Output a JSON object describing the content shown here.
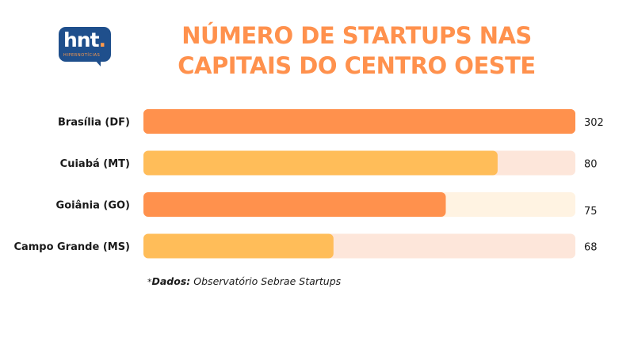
{
  "logo": {
    "word": "hnt",
    "dot": ".",
    "subtitle": "HIPERNOTÍCIAS"
  },
  "title": "NÚMERO DE STARTUPS NAS CAPITAIS DO CENTRO OESTE",
  "source": {
    "star": "*",
    "lead": "Dados:",
    "text": "Observatório Sebrae Startups"
  },
  "colors": {
    "title": "#ff914d",
    "bar_orange": "#ff914d",
    "bar_yellow": "#ffbd59",
    "track_peach": "#fde6da",
    "track_cream": "#fff3e2",
    "logo_bg": "#1f4f8c"
  },
  "chart_data": {
    "type": "bar",
    "orientation": "horizontal",
    "title": "NÚMERO DE STARTUPS NAS CAPITAIS DO CENTRO OESTE",
    "categories": [
      "Brasília (DF)",
      "Cuiabá (MT)",
      "Goiânia (GO)",
      "Campo Grande (MS)"
    ],
    "values": [
      302,
      80,
      75,
      68
    ],
    "value_labels": [
      "302",
      "80",
      "75",
      "68"
    ],
    "bar_fill_fraction": [
      1.0,
      0.82,
      0.7,
      0.44
    ],
    "bar_colors": [
      "#ff914d",
      "#ffbd59",
      "#ff914d",
      "#ffbd59"
    ],
    "track_colors": [
      "#ff914d",
      "#fde6da",
      "#fff3e2",
      "#fde6da"
    ],
    "xlabel": "",
    "ylabel": "",
    "grid": false,
    "legend": "none"
  }
}
